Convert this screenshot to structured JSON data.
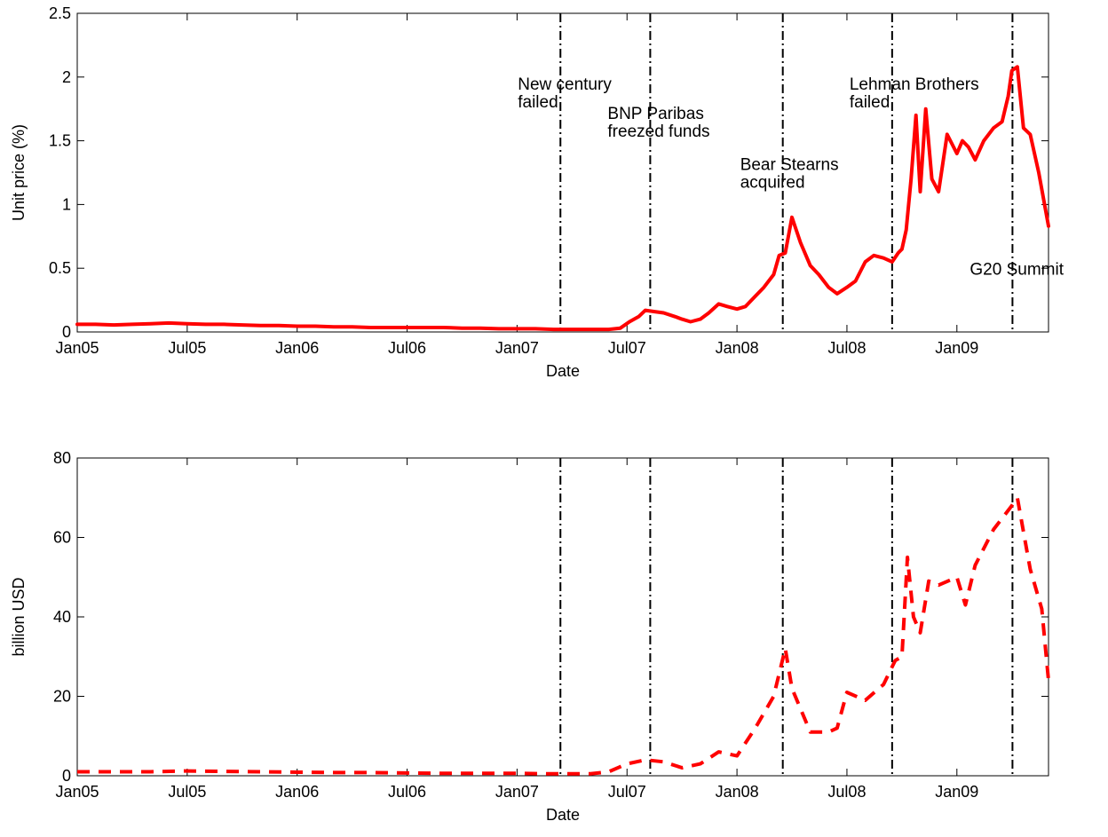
{
  "chart_data": [
    {
      "type": "line",
      "title": "",
      "xlabel": "Date",
      "ylabel": "Unit price (%)",
      "xlim": [
        "2005-01",
        "2009-06"
      ],
      "ylim": [
        0,
        2.5
      ],
      "grid": false,
      "x_ticks": [
        "Jan05",
        "Jul05",
        "Jan06",
        "Jul06",
        "Jan07",
        "Jul07",
        "Jan08",
        "Jul08",
        "Jan09"
      ],
      "y_ticks": [
        "0",
        "0.5",
        "1",
        "1.5",
        "2",
        "2.5"
      ],
      "series": [
        {
          "color": "#ff0000",
          "style": "solid",
          "x": [
            "2005-01",
            "2005-02",
            "2005-03",
            "2005-04",
            "2005-05",
            "2005-06",
            "2005-07",
            "2005-08",
            "2005-09",
            "2005-10",
            "2005-11",
            "2005-12",
            "2006-01",
            "2006-02",
            "2006-03",
            "2006-04",
            "2006-05",
            "2006-06",
            "2006-07",
            "2006-08",
            "2006-09",
            "2006-10",
            "2006-11",
            "2006-12",
            "2007-01",
            "2007-02",
            "2007-03",
            "2007-04",
            "2007-05",
            "2007-06",
            "2007-06-20",
            "2007-07-05",
            "2007-07-20",
            "2007-08",
            "2007-08-15",
            "2007-09",
            "2007-09-20",
            "2007-10",
            "2007-10-15",
            "2007-11",
            "2007-11-15",
            "2007-12",
            "2007-12-15",
            "2008-01",
            "2008-01-15",
            "2008-02",
            "2008-02-15",
            "2008-03",
            "2008-03-10",
            "2008-03-20",
            "2008-04",
            "2008-04-15",
            "2008-05",
            "2008-05-15",
            "2008-06",
            "2008-06-15",
            "2008-07",
            "2008-07-15",
            "2008-08",
            "2008-08-15",
            "2008-09",
            "2008-09-15",
            "2008-09-25",
            "2008-10",
            "2008-10-08",
            "2008-10-16",
            "2008-10-24",
            "2008-11",
            "2008-11-10",
            "2008-11-20",
            "2008-12",
            "2008-12-15",
            "2009-01",
            "2009-01-10",
            "2009-01-20",
            "2009-02",
            "2009-02-15",
            "2009-03",
            "2009-03-15",
            "2009-03-25",
            "2009-04",
            "2009-04-10",
            "2009-04-20",
            "2009-05",
            "2009-05-15",
            "2009-06"
          ],
          "y": [
            0.06,
            0.06,
            0.055,
            0.06,
            0.065,
            0.07,
            0.065,
            0.06,
            0.06,
            0.055,
            0.05,
            0.05,
            0.045,
            0.045,
            0.04,
            0.04,
            0.035,
            0.035,
            0.035,
            0.035,
            0.035,
            0.03,
            0.03,
            0.025,
            0.025,
            0.025,
            0.02,
            0.02,
            0.02,
            0.02,
            0.03,
            0.08,
            0.12,
            0.17,
            0.16,
            0.15,
            0.12,
            0.1,
            0.08,
            0.1,
            0.15,
            0.22,
            0.2,
            0.18,
            0.2,
            0.28,
            0.35,
            0.45,
            0.6,
            0.62,
            0.9,
            0.7,
            0.52,
            0.45,
            0.35,
            0.3,
            0.35,
            0.4,
            0.55,
            0.6,
            0.58,
            0.55,
            0.62,
            0.65,
            0.8,
            1.2,
            1.7,
            1.1,
            1.75,
            1.2,
            1.1,
            1.55,
            1.4,
            1.5,
            1.45,
            1.35,
            1.5,
            1.6,
            1.65,
            1.85,
            2.05,
            2.08,
            1.6,
            1.55,
            1.25,
            0.83
          ]
        }
      ],
      "annotations": [
        {
          "x": "2007-03-12",
          "lines": [
            "New century",
            "failed"
          ],
          "label_y": 1.9
        },
        {
          "x": "2007-08-09",
          "lines": [
            "BNP Paribas",
            "freezed funds"
          ],
          "label_y": 1.67
        },
        {
          "x": "2008-03-16",
          "lines": [
            "Bear Stearns",
            "acquired"
          ],
          "label_y": 1.27
        },
        {
          "x": "2008-09-15",
          "lines": [
            "Lehman Brothers",
            "failed"
          ],
          "label_y": 1.9
        },
        {
          "x": "2009-04-02",
          "lines": [
            "G20 Summit"
          ],
          "label_y": 0.45
        }
      ]
    },
    {
      "type": "line",
      "title": "",
      "xlabel": "Date",
      "ylabel": "billion USD",
      "xlim": [
        "2005-01",
        "2009-06"
      ],
      "ylim": [
        0,
        80
      ],
      "grid": false,
      "x_ticks": [
        "Jan05",
        "Jul05",
        "Jan06",
        "Jul06",
        "Jan07",
        "Jul07",
        "Jan08",
        "Jul08",
        "Jan09"
      ],
      "y_ticks": [
        "0",
        "20",
        "40",
        "60",
        "80"
      ],
      "series": [
        {
          "color": "#ff0000",
          "style": "dashed",
          "x": [
            "2005-01",
            "2005-03",
            "2005-05",
            "2005-07",
            "2005-09",
            "2005-11",
            "2006-01",
            "2006-03",
            "2006-05",
            "2006-07",
            "2006-09",
            "2006-11",
            "2007-01",
            "2007-03",
            "2007-05",
            "2007-06",
            "2007-07",
            "2007-08",
            "2007-09",
            "2007-10",
            "2007-11",
            "2007-12",
            "2008-01",
            "2008-02",
            "2008-03",
            "2008-03-20",
            "2008-04",
            "2008-05",
            "2008-06",
            "2008-06-15",
            "2008-07",
            "2008-08",
            "2008-09",
            "2008-09-20",
            "2008-10",
            "2008-10-10",
            "2008-10-20",
            "2008-11",
            "2008-11-15",
            "2008-12",
            "2009-01",
            "2009-01-15",
            "2009-02",
            "2009-03",
            "2009-04",
            "2009-04-10",
            "2009-05",
            "2009-05-20",
            "2009-06"
          ],
          "y": [
            1,
            1,
            1,
            1.2,
            1.1,
            1,
            0.9,
            0.8,
            0.8,
            0.7,
            0.6,
            0.6,
            0.6,
            0.5,
            0.5,
            1,
            3,
            4,
            3.5,
            2,
            3,
            6,
            5,
            12,
            20,
            32,
            22,
            11,
            11,
            12,
            21,
            19,
            23,
            29,
            30,
            55,
            40,
            36,
            49,
            48,
            50,
            43,
            53,
            62,
            68,
            70,
            52,
            42,
            24
          ]
        }
      ],
      "event_lines": [
        "2007-03-12",
        "2007-08-09",
        "2008-03-16",
        "2008-09-15",
        "2009-04-02"
      ]
    }
  ]
}
